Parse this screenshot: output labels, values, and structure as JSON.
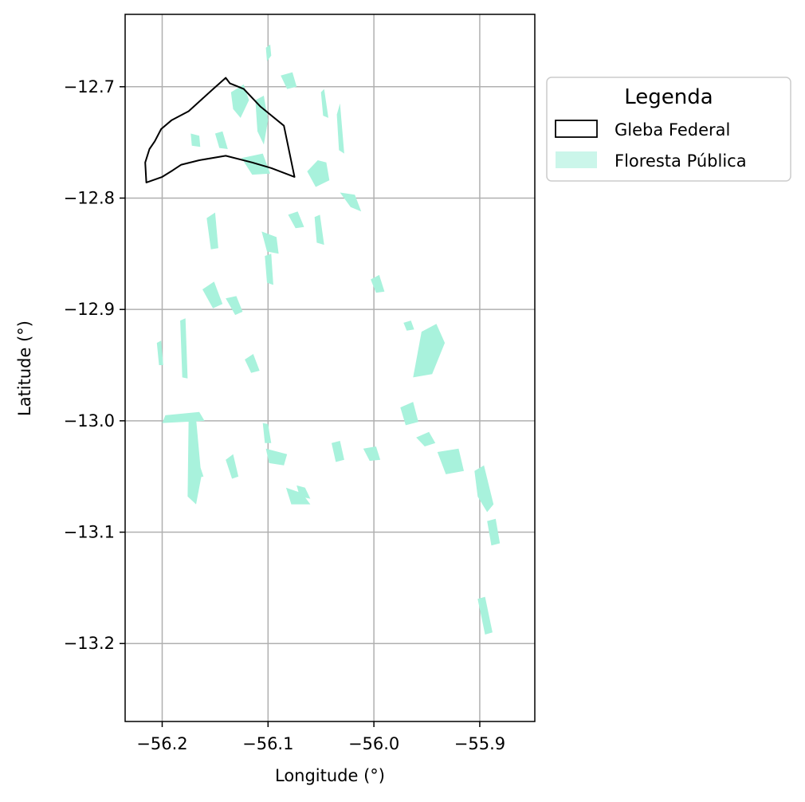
{
  "map": {
    "xlabel": "Longitude (°)",
    "ylabel": "Latitude (°)",
    "xlim": [
      -56.235,
      -55.848
    ],
    "ylim": [
      -13.27,
      -12.635
    ],
    "x_ticks": [
      -56.2,
      -56.1,
      -56.0,
      -55.9
    ],
    "y_ticks": [
      -12.7,
      -12.8,
      -12.9,
      -13.0,
      -13.1,
      -13.2
    ],
    "x_tick_labels": [
      "−56.2",
      "−56.1",
      "−56.0",
      "−55.9"
    ],
    "y_tick_labels": [
      "−12.7",
      "−12.8",
      "−12.9",
      "−13.0",
      "−13.1",
      "−13.2"
    ],
    "grid": true,
    "colors": {
      "forest": "#a8f2dc",
      "gleba_stroke": "#000000",
      "grid": "#b0b0b0"
    }
  },
  "legend": {
    "title": "Legenda",
    "placement": "outside-right-top",
    "items": [
      {
        "label": "Gleba Federal",
        "style": "outline"
      },
      {
        "label": "Floresta Pública",
        "style": "fill"
      }
    ]
  },
  "gleba_federal": [
    [
      -56.215,
      -12.786
    ],
    [
      -56.216,
      -12.768
    ],
    [
      -56.212,
      -12.756
    ],
    [
      -56.207,
      -12.749
    ],
    [
      -56.201,
      -12.738
    ],
    [
      -56.191,
      -12.73
    ],
    [
      -56.175,
      -12.722
    ],
    [
      -56.153,
      -12.703
    ],
    [
      -56.14,
      -12.692
    ],
    [
      -56.136,
      -12.697
    ],
    [
      -56.123,
      -12.702
    ],
    [
      -56.107,
      -12.718
    ],
    [
      -56.085,
      -12.735
    ],
    [
      -56.075,
      -12.781
    ],
    [
      -56.097,
      -12.773
    ],
    [
      -56.115,
      -12.768
    ],
    [
      -56.14,
      -12.762
    ],
    [
      -56.165,
      -12.766
    ],
    [
      -56.182,
      -12.77
    ],
    [
      -56.19,
      -12.775
    ],
    [
      -56.2,
      -12.781
    ],
    [
      -56.215,
      -12.786
    ]
  ],
  "floresta_publica": [
    [
      [
        -56.102,
        -12.665
      ],
      [
        -56.098,
        -12.662
      ],
      [
        -56.097,
        -12.672
      ],
      [
        -56.101,
        -12.677
      ]
    ],
    [
      [
        -56.135,
        -12.705
      ],
      [
        -56.123,
        -12.698
      ],
      [
        -56.118,
        -12.712
      ],
      [
        -56.126,
        -12.728
      ],
      [
        -56.133,
        -12.72
      ]
    ],
    [
      [
        -56.112,
        -12.712
      ],
      [
        -56.104,
        -12.708
      ],
      [
        -56.1,
        -12.73
      ],
      [
        -56.104,
        -12.752
      ],
      [
        -56.11,
        -12.74
      ]
    ],
    [
      [
        -56.088,
        -12.69
      ],
      [
        -56.077,
        -12.687
      ],
      [
        -56.073,
        -12.7
      ],
      [
        -56.082,
        -12.702
      ]
    ],
    [
      [
        -56.173,
        -12.742
      ],
      [
        -56.165,
        -12.744
      ],
      [
        -56.164,
        -12.754
      ],
      [
        -56.172,
        -12.753
      ]
    ],
    [
      [
        -56.15,
        -12.742
      ],
      [
        -56.143,
        -12.74
      ],
      [
        -56.138,
        -12.756
      ],
      [
        -56.146,
        -12.755
      ]
    ],
    [
      [
        -56.125,
        -12.764
      ],
      [
        -56.105,
        -12.76
      ],
      [
        -56.098,
        -12.778
      ],
      [
        -56.115,
        -12.779
      ]
    ],
    [
      [
        -56.053,
        -12.766
      ],
      [
        -56.045,
        -12.768
      ],
      [
        -56.042,
        -12.784
      ],
      [
        -56.055,
        -12.79
      ],
      [
        -56.063,
        -12.776
      ]
    ],
    [
      [
        -56.05,
        -12.705
      ],
      [
        -56.047,
        -12.702
      ],
      [
        -56.043,
        -12.728
      ],
      [
        -56.048,
        -12.726
      ]
    ],
    [
      [
        -56.035,
        -12.725
      ],
      [
        -56.032,
        -12.715
      ],
      [
        -56.028,
        -12.76
      ],
      [
        -56.033,
        -12.757
      ]
    ],
    [
      [
        -56.032,
        -12.795
      ],
      [
        -56.018,
        -12.797
      ],
      [
        -56.012,
        -12.812
      ],
      [
        -56.022,
        -12.808
      ]
    ],
    [
      [
        -56.106,
        -12.83
      ],
      [
        -56.092,
        -12.835
      ],
      [
        -56.09,
        -12.85
      ],
      [
        -56.101,
        -12.848
      ]
    ],
    [
      [
        -56.081,
        -12.815
      ],
      [
        -56.072,
        -12.812
      ],
      [
        -56.066,
        -12.826
      ],
      [
        -56.074,
        -12.827
      ]
    ],
    [
      [
        -56.056,
        -12.817
      ],
      [
        -56.051,
        -12.815
      ],
      [
        -56.047,
        -12.842
      ],
      [
        -56.054,
        -12.84
      ]
    ],
    [
      [
        -56.158,
        -12.818
      ],
      [
        -56.15,
        -12.813
      ],
      [
        -56.147,
        -12.845
      ],
      [
        -56.154,
        -12.846
      ]
    ],
    [
      [
        -56.103,
        -12.852
      ],
      [
        -56.097,
        -12.85
      ],
      [
        -56.095,
        -12.878
      ],
      [
        -56.101,
        -12.876
      ]
    ],
    [
      [
        -56.162,
        -12.882
      ],
      [
        -56.151,
        -12.875
      ],
      [
        -56.143,
        -12.895
      ],
      [
        -56.152,
        -12.899
      ]
    ],
    [
      [
        -56.14,
        -12.89
      ],
      [
        -56.13,
        -12.888
      ],
      [
        -56.124,
        -12.902
      ],
      [
        -56.131,
        -12.905
      ]
    ],
    [
      [
        -56.003,
        -12.873
      ],
      [
        -55.995,
        -12.869
      ],
      [
        -55.99,
        -12.884
      ],
      [
        -55.998,
        -12.885
      ]
    ],
    [
      [
        -55.955,
        -12.92
      ],
      [
        -55.941,
        -12.913
      ],
      [
        -55.933,
        -12.93
      ],
      [
        -55.945,
        -12.958
      ],
      [
        -55.963,
        -12.961
      ]
    ],
    [
      [
        -55.972,
        -12.912
      ],
      [
        -55.965,
        -12.91
      ],
      [
        -55.962,
        -12.918
      ],
      [
        -55.969,
        -12.919
      ]
    ],
    [
      [
        -56.122,
        -12.945
      ],
      [
        -56.114,
        -12.94
      ],
      [
        -56.108,
        -12.955
      ],
      [
        -56.116,
        -12.957
      ]
    ],
    [
      [
        -56.205,
        -12.93
      ],
      [
        -56.201,
        -12.928
      ],
      [
        -56.199,
        -12.95
      ],
      [
        -56.203,
        -12.95
      ]
    ],
    [
      [
        -56.183,
        -12.91
      ],
      [
        -56.178,
        -12.908
      ],
      [
        -56.176,
        -12.962
      ],
      [
        -56.181,
        -12.961
      ]
    ],
    [
      [
        -56.197,
        -12.995
      ],
      [
        -56.165,
        -12.992
      ],
      [
        -56.16,
        -13.0
      ],
      [
        -56.2,
        -13.002
      ]
    ],
    [
      [
        -56.175,
        -12.996
      ],
      [
        -56.168,
        -12.998
      ],
      [
        -56.163,
        -13.05
      ],
      [
        -56.168,
        -13.075
      ],
      [
        -56.176,
        -13.068
      ]
    ],
    [
      [
        -56.175,
        -13.031
      ],
      [
        -56.167,
        -13.033
      ],
      [
        -56.161,
        -13.05
      ],
      [
        -56.17,
        -13.052
      ]
    ],
    [
      [
        -56.105,
        -13.002
      ],
      [
        -56.1,
        -13.003
      ],
      [
        -56.097,
        -13.02
      ],
      [
        -56.103,
        -13.02
      ]
    ],
    [
      [
        -56.102,
        -13.025
      ],
      [
        -56.082,
        -13.03
      ],
      [
        -56.085,
        -13.04
      ],
      [
        -56.099,
        -13.038
      ]
    ],
    [
      [
        -56.083,
        -13.06
      ],
      [
        -56.068,
        -13.065
      ],
      [
        -56.06,
        -13.075
      ],
      [
        -56.078,
        -13.075
      ]
    ],
    [
      [
        -56.073,
        -13.058
      ],
      [
        -56.065,
        -13.06
      ],
      [
        -56.06,
        -13.07
      ],
      [
        -56.07,
        -13.068
      ]
    ],
    [
      [
        -56.04,
        -13.02
      ],
      [
        -56.032,
        -13.018
      ],
      [
        -56.028,
        -13.035
      ],
      [
        -56.036,
        -13.037
      ]
    ],
    [
      [
        -56.01,
        -13.025
      ],
      [
        -55.998,
        -13.023
      ],
      [
        -55.994,
        -13.035
      ],
      [
        -56.004,
        -13.036
      ]
    ],
    [
      [
        -55.975,
        -12.988
      ],
      [
        -55.963,
        -12.983
      ],
      [
        -55.958,
        -13.001
      ],
      [
        -55.97,
        -13.004
      ]
    ],
    [
      [
        -55.96,
        -13.015
      ],
      [
        -55.948,
        -13.01
      ],
      [
        -55.942,
        -13.02
      ],
      [
        -55.952,
        -13.023
      ]
    ],
    [
      [
        -55.94,
        -13.028
      ],
      [
        -55.92,
        -13.025
      ],
      [
        -55.915,
        -13.045
      ],
      [
        -55.932,
        -13.048
      ]
    ],
    [
      [
        -55.905,
        -13.045
      ],
      [
        -55.896,
        -13.04
      ],
      [
        -55.887,
        -13.075
      ],
      [
        -55.893,
        -13.082
      ],
      [
        -55.902,
        -13.068
      ]
    ],
    [
      [
        -55.893,
        -13.09
      ],
      [
        -55.885,
        -13.088
      ],
      [
        -55.881,
        -13.11
      ],
      [
        -55.889,
        -13.112
      ]
    ],
    [
      [
        -55.902,
        -13.16
      ],
      [
        -55.895,
        -13.158
      ],
      [
        -55.888,
        -13.19
      ],
      [
        -55.895,
        -13.192
      ]
    ],
    [
      [
        -56.14,
        -13.035
      ],
      [
        -56.133,
        -13.03
      ],
      [
        -56.128,
        -13.05
      ],
      [
        -56.134,
        -13.052
      ]
    ]
  ]
}
